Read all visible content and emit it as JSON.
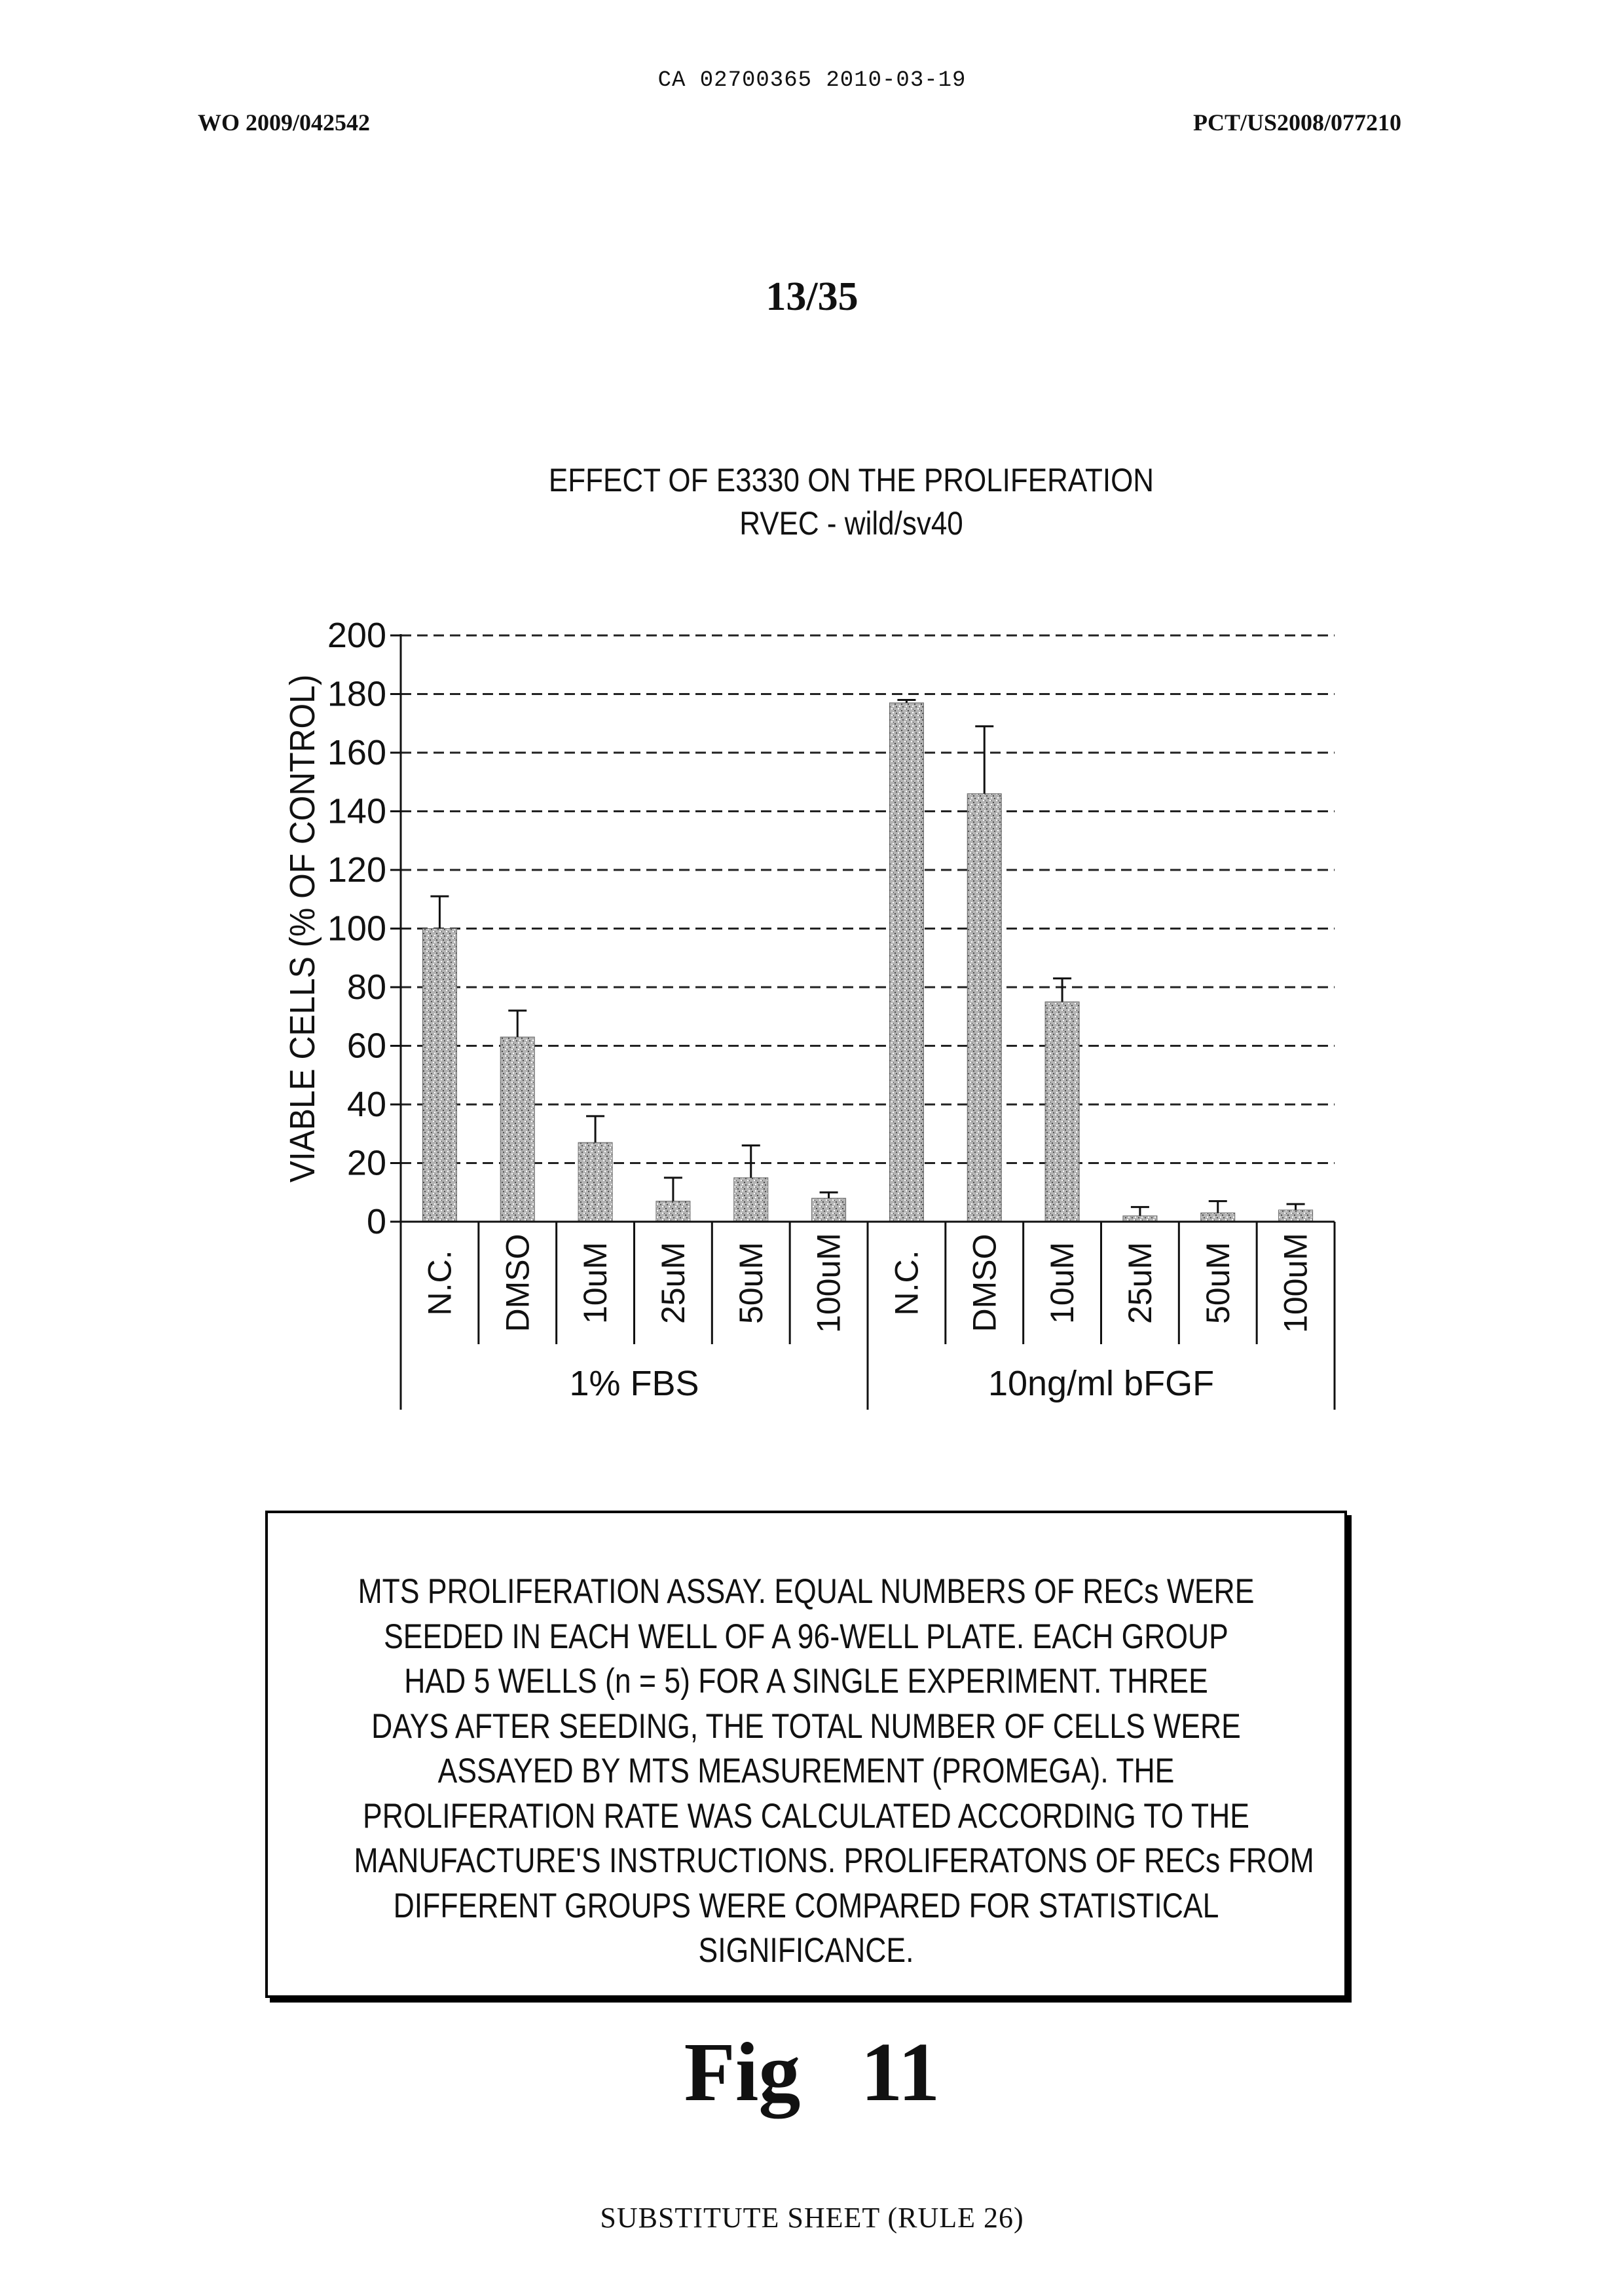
{
  "header": {
    "ca_number": "CA 02700365 2010-03-19",
    "pub_left": "WO 2009/042542",
    "pub_right": "PCT/US2008/077210",
    "sheet": "13/35"
  },
  "chart_data": {
    "type": "bar",
    "title_lines": [
      "EFFECT OF E3330 ON THE PROLIFERATION",
      "RVEC - wild/sv40"
    ],
    "ylabel": "VIABLE CELLS (% OF CONTROL)",
    "xlabel": "",
    "ylim": [
      0,
      200
    ],
    "yticks": [
      0,
      20,
      40,
      60,
      80,
      100,
      120,
      140,
      160,
      180,
      200
    ],
    "grid": true,
    "legend": "none",
    "bar_color": "#a9a9a9",
    "groups": [
      {
        "label": "1% FBS",
        "categories": [
          "N.C.",
          "DMSO",
          "10uM",
          "25uM",
          "50uM",
          "100uM"
        ]
      },
      {
        "label": "10ng/ml bFGF",
        "categories": [
          "N.C.",
          "DMSO",
          "10uM",
          "25uM",
          "50uM",
          "100uM"
        ]
      }
    ],
    "categories": [
      "N.C.",
      "DMSO",
      "10uM",
      "25uM",
      "50uM",
      "100uM",
      "N.C.",
      "DMSO",
      "10uM",
      "25uM",
      "50uM",
      "100uM"
    ],
    "values": [
      100,
      63,
      27,
      7,
      15,
      8,
      177,
      146,
      75,
      2,
      3,
      4
    ],
    "errors": [
      11,
      9,
      9,
      8,
      11,
      2,
      1,
      23,
      8,
      3,
      4,
      2
    ]
  },
  "note": {
    "lines": [
      "MTS PROLIFERATION ASSAY. EQUAL NUMBERS OF RECs WERE",
      "SEEDED IN EACH WELL OF A 96-WELL PLATE. EACH GROUP",
      "HAD 5 WELLS (n = 5) FOR A SINGLE EXPERIMENT. THREE",
      "DAYS AFTER SEEDING, THE TOTAL NUMBER OF CELLS WERE",
      "ASSAYED BY MTS MEASUREMENT (PROMEGA). THE",
      "PROLIFERATION RATE WAS CALCULATED ACCORDING TO THE",
      "MANUFACTURE'S INSTRUCTIONS. PROLIFERATONS OF RECs FROM",
      "DIFFERENT GROUPS WERE COMPARED FOR STATISTICAL",
      "SIGNIFICANCE."
    ]
  },
  "figure_label": "Fig 11",
  "footer": "SUBSTITUTE SHEET (RULE 26)"
}
